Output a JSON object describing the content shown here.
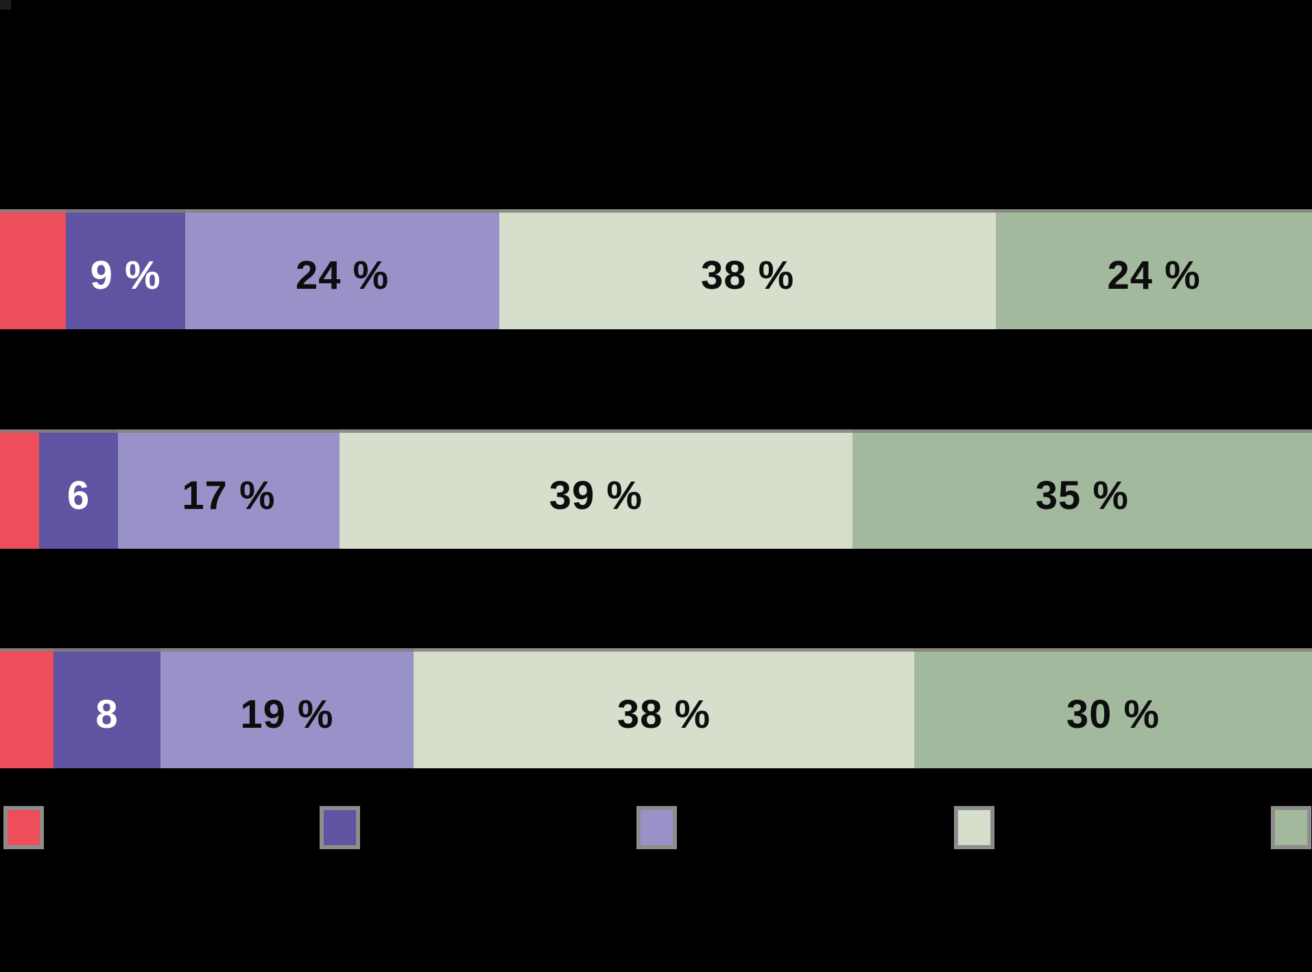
{
  "chart_data": {
    "type": "bar",
    "orientation": "horizontal",
    "stacked": true,
    "title": "",
    "xlabel": "",
    "ylabel": "",
    "xlim": [
      0,
      100
    ],
    "grid": false,
    "legend_position": "bottom",
    "categories": [
      "",
      "",
      ""
    ],
    "series": [
      {
        "legend_label": "",
        "color": "#ee4e5a",
        "values_pct": [
          5,
          3,
          4
        ],
        "data_labels": [
          "",
          "",
          ""
        ]
      },
      {
        "legend_label": "",
        "color": "#5e54a1",
        "values_pct": [
          9,
          6,
          8
        ],
        "data_labels": [
          "9 %",
          "6",
          "8"
        ]
      },
      {
        "legend_label": "",
        "color": "#9892c9",
        "values_pct": [
          24,
          17,
          19
        ],
        "data_labels": [
          "24 %",
          "17 %",
          "19 %"
        ]
      },
      {
        "legend_label": "",
        "color": "#d5dfcc",
        "values_pct": [
          38,
          39,
          38
        ],
        "data_labels": [
          "38 %",
          "39 %",
          "38 %"
        ]
      },
      {
        "legend_label": "",
        "color": "#a2b99d",
        "values_pct": [
          24,
          35,
          30
        ],
        "data_labels": [
          "24 %",
          "35 %",
          "30 %"
        ]
      }
    ]
  },
  "colors": {
    "background": "#000000",
    "bar_top_strip": "rgba(131,129,124,0.85)",
    "legend_swatch_border": "#8d8d8d",
    "label_on_dark": "#ffffff",
    "label_on_light": "#0d0d0d"
  },
  "geometry": {
    "rows": [
      {
        "top_pct": 21.52,
        "height_pct": 12.35,
        "segment_width_pct": [
          5.02,
          9.1,
          23.94,
          37.85,
          24.09
        ]
      },
      {
        "top_pct": 44.18,
        "height_pct": 12.28,
        "segment_width_pct": [
          2.98,
          6.01,
          16.88,
          39.1,
          35.03
        ]
      },
      {
        "top_pct": 66.69,
        "height_pct": 12.35,
        "segment_width_pct": [
          4.08,
          8.15,
          19.29,
          38.16,
          30.32
        ]
      }
    ],
    "label_text_is_white_for_series_index": 1,
    "legend_swatches": [
      {
        "left_pct": 0.26,
        "width_pct": 3.08
      },
      {
        "left_pct": 24.36,
        "width_pct": 3.08
      },
      {
        "left_pct": 48.51,
        "width_pct": 3.08
      },
      {
        "left_pct": 72.71,
        "width_pct": 3.08
      },
      {
        "left_pct": 96.86,
        "width_pct": 3.08
      }
    ]
  }
}
